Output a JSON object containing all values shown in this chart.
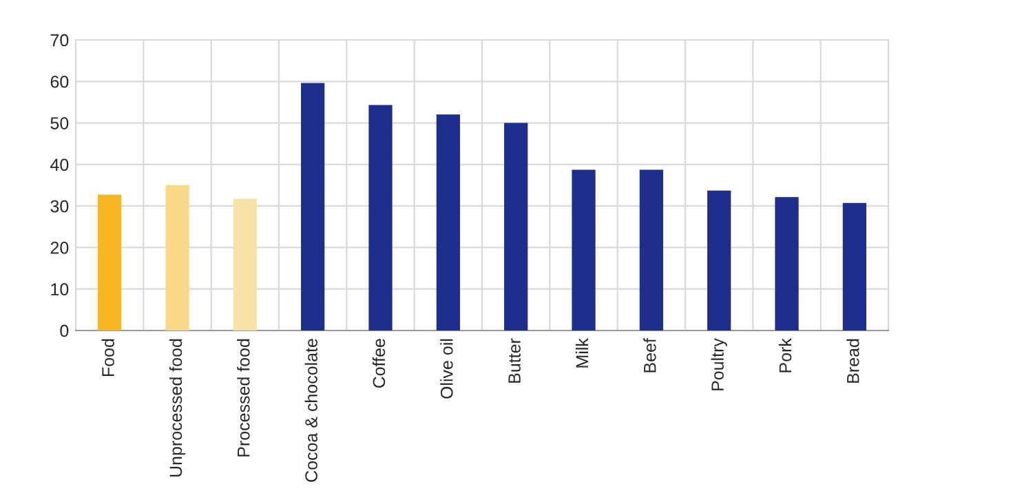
{
  "chart_data": {
    "type": "bar",
    "categories": [
      "Food",
      "Unprocessed food",
      "Processed food",
      "Cocoa & chocolate",
      "Coffee",
      "Olive oil",
      "Butter",
      "Milk",
      "Beef",
      "Poultry",
      "Pork",
      "Bread"
    ],
    "values": [
      32.5,
      34.8,
      31.5,
      59.4,
      54.1,
      51.8,
      49.8,
      38.5,
      38.5,
      33.5,
      31.9,
      30.5
    ],
    "colors": [
      "#f8b622",
      "#f8d98a",
      "#f8e2a8",
      "#1f2d8c",
      "#1f2d8c",
      "#1f2d8c",
      "#1f2d8c",
      "#1f2d8c",
      "#1f2d8c",
      "#1f2d8c",
      "#1f2d8c",
      "#1f2d8c"
    ],
    "ylim": [
      0,
      70
    ],
    "yticks": [
      0,
      10,
      20,
      30,
      40,
      50,
      60,
      70
    ],
    "grid": true
  }
}
